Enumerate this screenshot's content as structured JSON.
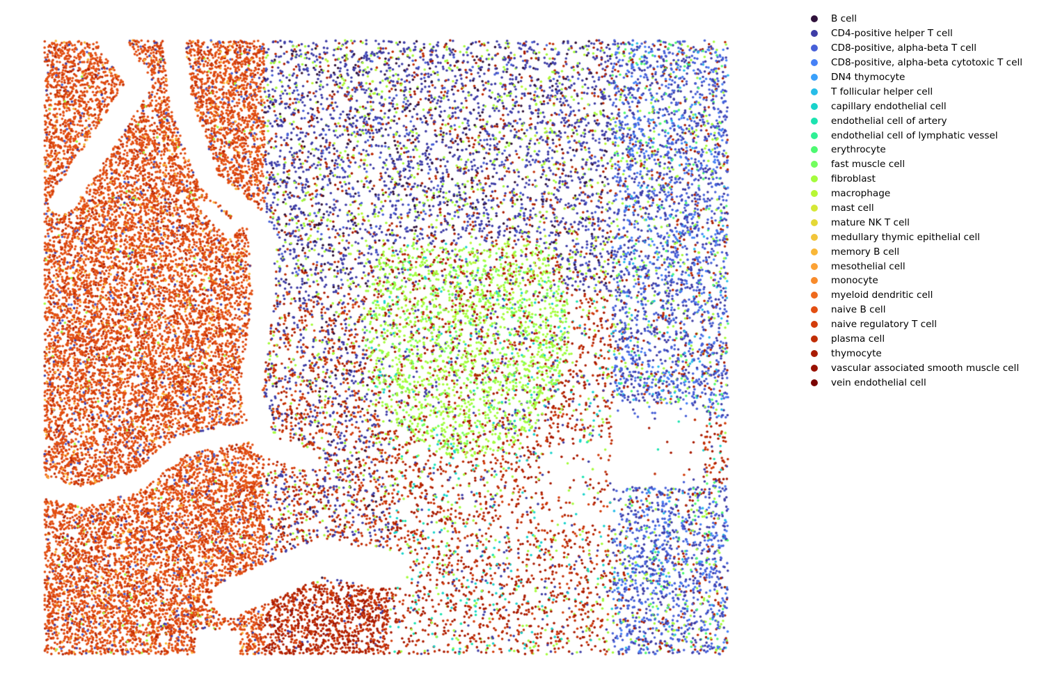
{
  "chart_data": {
    "type": "scatter",
    "title": "",
    "xlabel": "",
    "ylabel": "",
    "axes_visible": false,
    "legend_position": "right",
    "categories": [
      {
        "name": "B cell",
        "color": "#30123b"
      },
      {
        "name": "CD4-positive helper T cell",
        "color": "#3e3da6"
      },
      {
        "name": "CD8-positive, alpha-beta T cell",
        "color": "#4760d8"
      },
      {
        "name": "CD8-positive, alpha-beta cytotoxic T cell",
        "color": "#4681f6"
      },
      {
        "name": "DN4 thymocyte",
        "color": "#3aa0fb"
      },
      {
        "name": "T follicular helper cell",
        "color": "#27bde8"
      },
      {
        "name": "capillary endothelial cell",
        "color": "#19d3cb"
      },
      {
        "name": "endothelial cell of artery",
        "color": "#1ce3b0"
      },
      {
        "name": "endothelial cell of lymphatic vessel",
        "color": "#2ff095"
      },
      {
        "name": "erythrocyte",
        "color": "#4df971"
      },
      {
        "name": "fast muscle cell",
        "color": "#72fe5e"
      },
      {
        "name": "fibroblast",
        "color": "#a4fc3c"
      },
      {
        "name": "macrophage",
        "color": "#b8f735"
      },
      {
        "name": "mast cell",
        "color": "#d5e836"
      },
      {
        "name": "mature NK T cell",
        "color": "#e4d836"
      },
      {
        "name": "medullary thymic epithelial cell",
        "color": "#f2c53a"
      },
      {
        "name": "memory B cell",
        "color": "#f9b737"
      },
      {
        "name": "mesothelial cell",
        "color": "#fca235"
      },
      {
        "name": "monocyte",
        "color": "#f88b2b"
      },
      {
        "name": "myeloid dendritic cell",
        "color": "#ee6a1d"
      },
      {
        "name": "naive B cell",
        "color": "#e34f12"
      },
      {
        "name": "naive regulatory T cell",
        "color": "#d33d0b"
      },
      {
        "name": "plasma cell",
        "color": "#c02d05"
      },
      {
        "name": "thymocyte",
        "color": "#a91b02"
      },
      {
        "name": "vascular associated smooth muscle cell",
        "color": "#981001"
      },
      {
        "name": "vein endothelial cell",
        "color": "#7a0403"
      }
    ],
    "dominant_populations": [
      {
        "region": "left lobules",
        "category": "naive B cell"
      },
      {
        "region": "upper center",
        "category": "CD4-positive helper T cell"
      },
      {
        "region": "center",
        "category": "fibroblast"
      },
      {
        "region": "right edge",
        "category": "CD8-positive, alpha-beta T cell"
      },
      {
        "region": "lower center",
        "category": "thymocyte"
      }
    ]
  }
}
